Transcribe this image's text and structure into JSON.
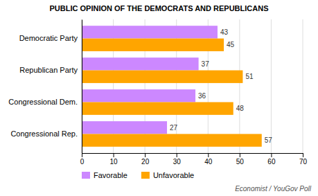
{
  "chart_data": {
    "type": "bar",
    "orientation": "horizontal",
    "title": "PUBLIC OPINION OF THE DEMOCRATS AND REPUBLICANS",
    "categories": [
      "Democratic Party",
      "Republican Party",
      "Congressional Dem.",
      "Congressional Rep."
    ],
    "series": [
      {
        "name": "Favorable",
        "color": "#CC88FF",
        "values": [
          43,
          37,
          36,
          27
        ]
      },
      {
        "name": "Unfavorable",
        "color": "#FFA500",
        "values": [
          45,
          51,
          48,
          57
        ]
      }
    ],
    "xlim": [
      0,
      70
    ],
    "xticks": [
      0,
      10,
      20,
      30,
      40,
      50,
      60,
      70
    ],
    "grid": true,
    "legend": "bottom",
    "data_labels": true,
    "source": "Economist / YouGov Poll"
  }
}
